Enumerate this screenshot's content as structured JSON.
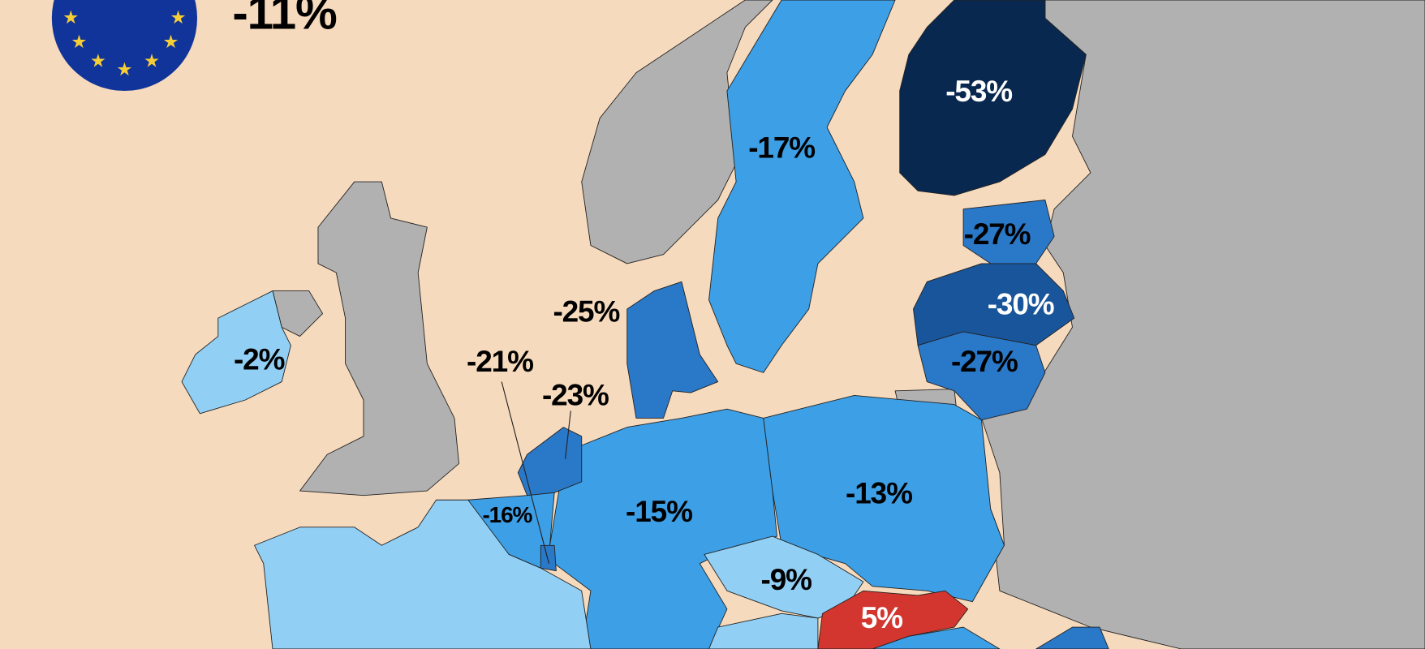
{
  "eu": {
    "label": "-11%"
  },
  "labels": [
    "-53%",
    "-17%",
    "-27%",
    "-30%",
    "-27%",
    "-25%",
    "-21%",
    "-23%",
    "-2%",
    "-16%",
    "-15%",
    "-13%",
    "-9%",
    "5%"
  ]
}
